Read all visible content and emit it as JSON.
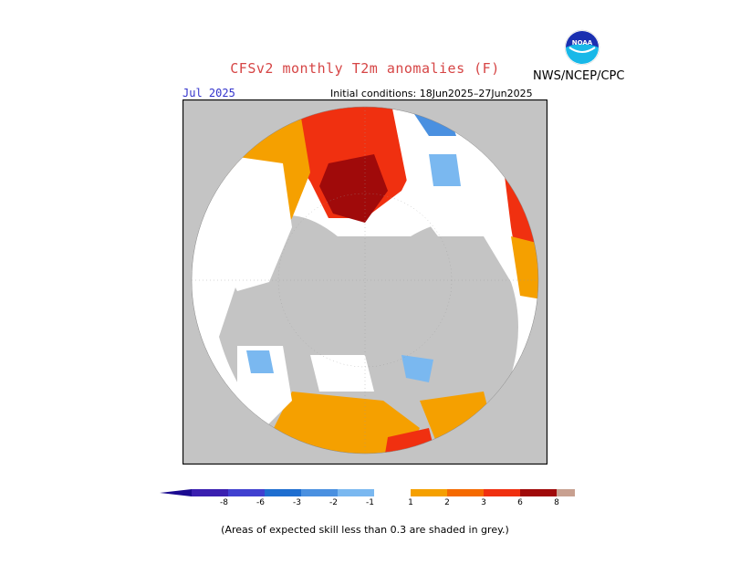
{
  "header": {
    "title": "CFSv2 monthly T2m anomalies (F)",
    "agency": "NWS/NCEP/CPC",
    "logo_text": "NOAA",
    "forecast_month": "Jul 2025",
    "initial_conditions": "Initial conditions: 18Jun2025–27Jun2025"
  },
  "legend": {
    "bins": [
      {
        "label": "-8",
        "color": "#3a1fb0"
      },
      {
        "label": "-6",
        "color": "#4040d0"
      },
      {
        "label": "-3",
        "color": "#1e6ed0"
      },
      {
        "label": "-2",
        "color": "#4a90e0"
      },
      {
        "label": "-1",
        "color": "#7ab8f0"
      },
      {
        "label": "",
        "color": "#ffffff"
      },
      {
        "label": "1",
        "color": "#f5a000"
      },
      {
        "label": "2",
        "color": "#f56a00"
      },
      {
        "label": "3",
        "color": "#f03010"
      },
      {
        "label": "6",
        "color": "#a00a0a"
      },
      {
        "label": "8",
        "color": "#c8a090"
      }
    ],
    "low_end_color": "#1a0a90",
    "high_end_color": "#7a4a40"
  },
  "map": {
    "projection": "north polar stereographic",
    "skill_mask_color": "#c0c0c0",
    "ocean_color": "#ffffff"
  },
  "footnote": "(Areas of expected skill less than 0.3 are shaded in grey.)"
}
